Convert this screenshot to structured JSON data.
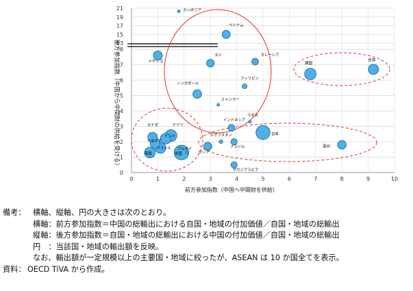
{
  "chart_data": {
    "type": "scatter",
    "xlabel": "前方参加指数（中国へ中間財を供給）",
    "ylabel": "後方参加指数（中国から中間財の供給を受ける）",
    "x_ticks": [
      "0",
      "1",
      "2",
      "3",
      "4",
      "5",
      "6",
      "7",
      "8",
      "9",
      "10"
    ],
    "y_ticks_upper": [
      "21",
      "19",
      "17",
      "15",
      "13"
    ],
    "y_ticks_lower": [
      "8",
      "7",
      "6",
      "5",
      "4",
      "3",
      "2",
      "1",
      "0"
    ],
    "xlim": [
      0,
      10
    ],
    "ylim_lower": [
      0,
      8
    ],
    "y_axis_break": "8〜13",
    "points": [
      {
        "name": "カンボジア",
        "x": 1.8,
        "y": 20.3,
        "size": 0.2
      },
      {
        "name": "ベトナム",
        "x": 3.6,
        "y": 15.0,
        "size": 2.0
      },
      {
        "name": "メキシコ",
        "x": 1.0,
        "y": 7.6,
        "size": 2.5
      },
      {
        "name": "タイ",
        "x": 3.0,
        "y": 7.1,
        "size": 1.8
      },
      {
        "name": "マレーシア",
        "x": 4.7,
        "y": 7.2,
        "size": 1.4
      },
      {
        "name": "韓国",
        "x": 6.8,
        "y": 6.4,
        "size": 4.0
      },
      {
        "name": "台湾",
        "x": 9.2,
        "y": 6.7,
        "size": 3.2
      },
      {
        "name": "シンガポール",
        "x": 2.5,
        "y": 5.1,
        "size": 2.3
      },
      {
        "name": "フィリピン",
        "x": 4.3,
        "y": 5.6,
        "size": 0.7
      },
      {
        "name": "ミャンマー",
        "x": 3.3,
        "y": 4.4,
        "size": 0.1
      },
      {
        "name": "ラオス",
        "x": 4.5,
        "y": 3.3,
        "size": 0.1
      },
      {
        "name": "インドネシア",
        "x": 3.8,
        "y": 2.9,
        "size": 1.4
      },
      {
        "name": "日本",
        "x": 5.0,
        "y": 2.6,
        "size": 6.0
      },
      {
        "name": "カザフスタン",
        "x": 3.4,
        "y": 2.0,
        "size": 0.4
      },
      {
        "name": "ブラジル",
        "x": 3.9,
        "y": 2.0,
        "size": 1.2
      },
      {
        "name": "豪州",
        "x": 8.0,
        "y": 1.8,
        "size": 2.3
      },
      {
        "name": "ロシア",
        "x": 2.9,
        "y": 1.7,
        "size": 2.0
      },
      {
        "name": "サウジアラビア",
        "x": 3.9,
        "y": 0.5,
        "size": 1.2
      },
      {
        "name": "カナダ",
        "x": 0.8,
        "y": 2.3,
        "size": 2.8
      },
      {
        "name": "ドイツ",
        "x": 1.5,
        "y": 2.4,
        "size": 4.2
      },
      {
        "name": "インド",
        "x": 1.3,
        "y": 2.2,
        "size": 3.5
      },
      {
        "name": "イタリア",
        "x": 0.9,
        "y": 1.9,
        "size": 3.0
      },
      {
        "name": "フランス",
        "x": 1.1,
        "y": 1.6,
        "size": 3.5
      },
      {
        "name": "英国",
        "x": 0.7,
        "y": 1.3,
        "size": 3.5
      },
      {
        "name": "米国",
        "x": 1.9,
        "y": 1.3,
        "size": 6.5
      },
      {
        "name": "ブルネイ",
        "x": 2.1,
        "y": 1.3,
        "size": 0.1
      }
    ]
  },
  "notes": {
    "key": "備考：",
    "line1": "横軸、縦軸、円の大きさは次のとおり。",
    "line2": "横軸：前方参加指数＝中国の総輸出における自国・地域の付加価値／自国・地域の総輸出",
    "line3": "縦軸：後方参加指数＝自国・地域の総輸出における中国の付加価値／自国・地域の総輸出",
    "line4": "円　：当該国・地域の輸出額を反映。",
    "line5": "なお、輸出額が一定規模以上の主要国・地域に絞ったが、ASEAN は 10 か国全てを表示。",
    "source_key": "資料：",
    "source": "OECD TiVA から作成。"
  },
  "colors": {
    "bubble_fill": "#4db0e8",
    "bubble_stroke": "#1f5f94",
    "red_ellipse": "#e0302a",
    "grid": "#d9d9d9",
    "axis_text": "#333333"
  }
}
